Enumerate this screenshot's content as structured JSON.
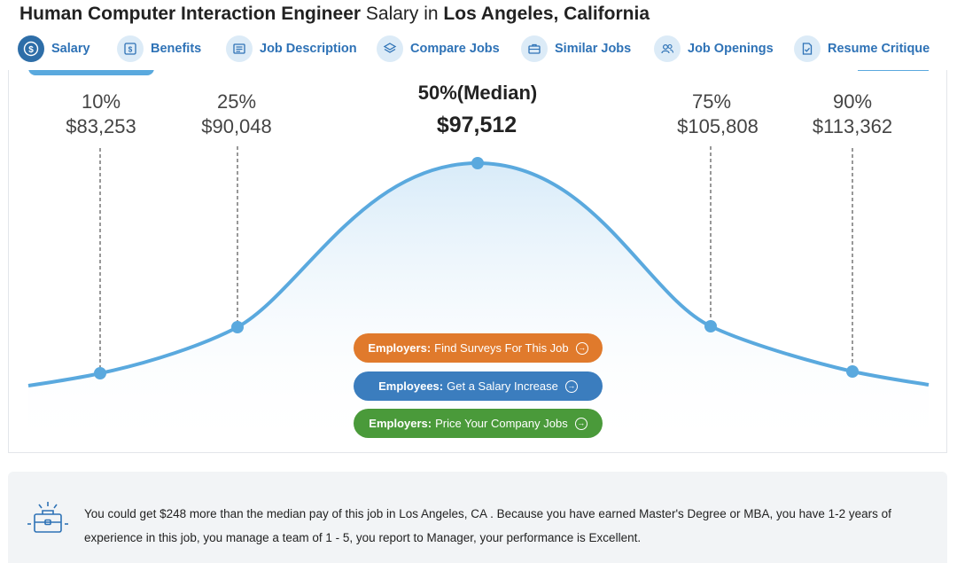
{
  "title": {
    "job": "Human Computer Interaction Engineer",
    "middle": " Salary in ",
    "location": "Los Angeles, California"
  },
  "tabs": [
    {
      "label": "Salary",
      "icon": "dollar-circle-icon",
      "active": true
    },
    {
      "label": "Benefits",
      "icon": "dollar-bill-icon"
    },
    {
      "label": "Job Description",
      "icon": "document-icon"
    },
    {
      "label": "Compare Jobs",
      "icon": "layers-icon"
    },
    {
      "label": "Similar Jobs",
      "icon": "briefcase-icon"
    },
    {
      "label": "Job Openings",
      "icon": "people-icon"
    },
    {
      "label": "Resume Critique",
      "icon": "resume-check-icon"
    }
  ],
  "percentiles": [
    {
      "pct": "10%",
      "value": "$83,253"
    },
    {
      "pct": "25%",
      "value": "$90,048"
    },
    {
      "pct": "50%(Median)",
      "value": "$97,512"
    },
    {
      "pct": "75%",
      "value": "$105,808"
    },
    {
      "pct": "90%",
      "value": "$113,362"
    }
  ],
  "ctas": {
    "surveys": {
      "bold": "Employers:",
      "text": "Find Surveys For This Job"
    },
    "increase": {
      "bold": "Employees:",
      "text": "Get a Salary Increase"
    },
    "price": {
      "bold": "Employers:",
      "text": "Price Your Company Jobs"
    }
  },
  "info": {
    "line1": "You could get $248 more than the median pay of this job in Los Angeles, CA . Because you have earned Master's Degree or MBA, you have 1-2 years of",
    "line2": "experience in this job, you manage a team of 1 - 5, you report to Manager, your performance is Excellent."
  },
  "colors": {
    "curve": "#5aa9de",
    "accent": "#2e72b6",
    "orange": "#e07a2c",
    "blue": "#3b7dbe",
    "green": "#4a9a3a"
  }
}
